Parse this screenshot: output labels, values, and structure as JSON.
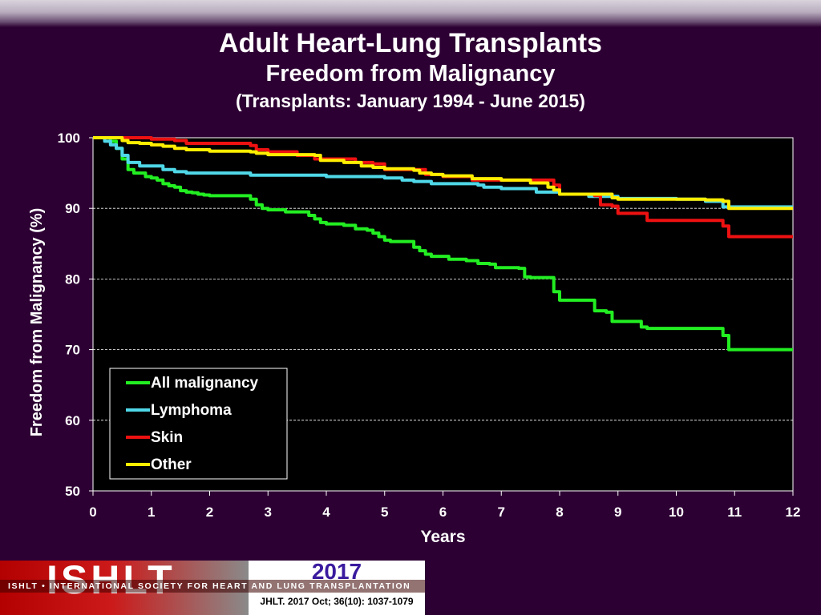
{
  "header": {
    "title": "Adult Heart-Lung Transplants",
    "subtitle": "Freedom from Malignancy",
    "period": "(Transplants: January 1994 - June 2015)"
  },
  "footer": {
    "logo_text": "ISHLT",
    "society_name": "ISHLT • INTERNATIONAL SOCIETY FOR HEART AND LUNG TRANSPLANTATION",
    "year": "2017",
    "citation": "JHLT. 2017 Oct; 36(10): 1037-1079"
  },
  "chart_data": {
    "type": "line",
    "xlabel": "Years",
    "ylabel": "Freedom from Malignancy (%)",
    "xlim": [
      0,
      12
    ],
    "ylim": [
      50,
      100
    ],
    "xticks": [
      0,
      1,
      2,
      3,
      4,
      5,
      6,
      7,
      8,
      9,
      10,
      11,
      12
    ],
    "yticks": [
      50,
      60,
      70,
      80,
      90,
      100
    ],
    "grid": "horizontal dashed",
    "legend_position": "bottom-left",
    "background": "#000000",
    "series": [
      {
        "name": "All malignancy",
        "color": "#22ee22",
        "x": [
          0,
          0.3,
          0.4,
          0.5,
          0.6,
          0.7,
          0.8,
          0.9,
          1.0,
          1.1,
          1.2,
          1.3,
          1.4,
          1.5,
          1.6,
          1.7,
          1.8,
          1.9,
          2.0,
          2.3,
          2.6,
          2.7,
          2.8,
          2.9,
          3.0,
          3.2,
          3.3,
          3.6,
          3.7,
          3.8,
          3.9,
          4.0,
          4.3,
          4.5,
          4.7,
          4.8,
          4.9,
          5.0,
          5.1,
          5.4,
          5.5,
          5.6,
          5.7,
          5.8,
          6.0,
          6.1,
          6.4,
          6.6,
          6.8,
          6.9,
          7.3,
          7.4,
          7.5,
          7.8,
          7.9,
          8.0,
          8.5,
          8.6,
          8.8,
          8.9,
          9.2,
          9.4,
          9.5,
          10.0,
          10.5,
          10.7,
          10.8,
          10.9,
          11.0,
          12.0
        ],
        "y": [
          100,
          99.5,
          98.5,
          97,
          95.5,
          95,
          95,
          94.5,
          94.3,
          94,
          93.5,
          93.2,
          93,
          92.5,
          92.3,
          92.2,
          92,
          91.9,
          91.8,
          91.8,
          91.8,
          91.3,
          90.5,
          90,
          89.8,
          89.8,
          89.5,
          89.5,
          89,
          88.5,
          88,
          87.8,
          87.6,
          87.1,
          86.9,
          86.5,
          86,
          85.5,
          85.3,
          85.3,
          84.5,
          84,
          83.5,
          83.2,
          83.2,
          82.8,
          82.6,
          82.2,
          82.1,
          81.6,
          81.5,
          80.3,
          80.2,
          80.2,
          78.2,
          77,
          77,
          75.5,
          75.3,
          74,
          74,
          73.2,
          73,
          73,
          73,
          73,
          72,
          70,
          70,
          70
        ]
      },
      {
        "name": "Lymphoma",
        "color": "#4fd8e8",
        "x": [
          0,
          0.2,
          0.3,
          0.4,
          0.5,
          0.6,
          0.8,
          1.0,
          1.2,
          1.4,
          1.6,
          2.0,
          2.6,
          2.7,
          3.0,
          3.7,
          4.0,
          4.5,
          5.0,
          5.3,
          5.5,
          5.8,
          6.0,
          6.6,
          6.7,
          7.0,
          7.5,
          7.6,
          8.0,
          8.5,
          9.0,
          10.0,
          10.5,
          10.8,
          11.0,
          12.0
        ],
        "y": [
          100,
          99.5,
          99,
          98.5,
          97.5,
          96.5,
          96,
          96,
          95.5,
          95.2,
          95,
          95,
          95,
          94.7,
          94.7,
          94.7,
          94.5,
          94.5,
          94.3,
          94,
          93.8,
          93.5,
          93.5,
          93.3,
          93,
          92.8,
          92.8,
          92.3,
          92,
          91.7,
          91.4,
          91.3,
          91,
          90.2,
          90.2,
          90.2
        ]
      },
      {
        "name": "Skin",
        "color": "#ee1111",
        "x": [
          0,
          0.5,
          1.0,
          1.4,
          1.6,
          2.0,
          2.6,
          2.7,
          2.8,
          3.0,
          3.5,
          3.8,
          4.0,
          4.3,
          4.5,
          4.8,
          5.0,
          5.5,
          5.7,
          6.0,
          6.5,
          7.0,
          7.8,
          7.9,
          8.0,
          8.6,
          8.7,
          8.9,
          9.0,
          9.4,
          9.5,
          10.0,
          10.7,
          10.8,
          10.9,
          12.0
        ],
        "y": [
          100,
          100,
          99.8,
          99.6,
          99.2,
          99.2,
          99.2,
          98.9,
          98.3,
          98,
          97.5,
          97,
          97,
          97,
          96.5,
          96.3,
          95.5,
          95.5,
          94.8,
          94.5,
          94,
          94,
          94,
          93.3,
          92,
          91.8,
          90.5,
          90.3,
          89.3,
          89.3,
          88.3,
          88.3,
          88.3,
          87.5,
          86,
          86
        ]
      },
      {
        "name": "Other",
        "color": "#ffee00",
        "x": [
          0,
          0.3,
          0.5,
          0.6,
          0.8,
          1.0,
          1.2,
          1.4,
          1.6,
          1.8,
          2.0,
          2.6,
          2.7,
          2.8,
          3.0,
          3.5,
          3.8,
          3.9,
          4.0,
          4.3,
          4.6,
          4.8,
          5.0,
          5.5,
          5.6,
          5.8,
          6.0,
          6.5,
          7.0,
          7.5,
          7.8,
          7.9,
          8.0,
          8.8,
          8.9,
          9.0,
          10.0,
          10.5,
          10.8,
          10.9,
          12.0
        ],
        "y": [
          100,
          100,
          99.6,
          99.3,
          99.2,
          99,
          98.8,
          98.5,
          98.3,
          98.3,
          98.1,
          98.1,
          98,
          97.8,
          97.6,
          97.6,
          97.5,
          96.8,
          96.8,
          96.5,
          96,
          95.8,
          95.6,
          95.4,
          95,
          94.8,
          94.6,
          94.2,
          94,
          93.6,
          93,
          92.6,
          92,
          92,
          91.5,
          91.3,
          91.3,
          91.2,
          91,
          90,
          90
        ]
      }
    ]
  }
}
